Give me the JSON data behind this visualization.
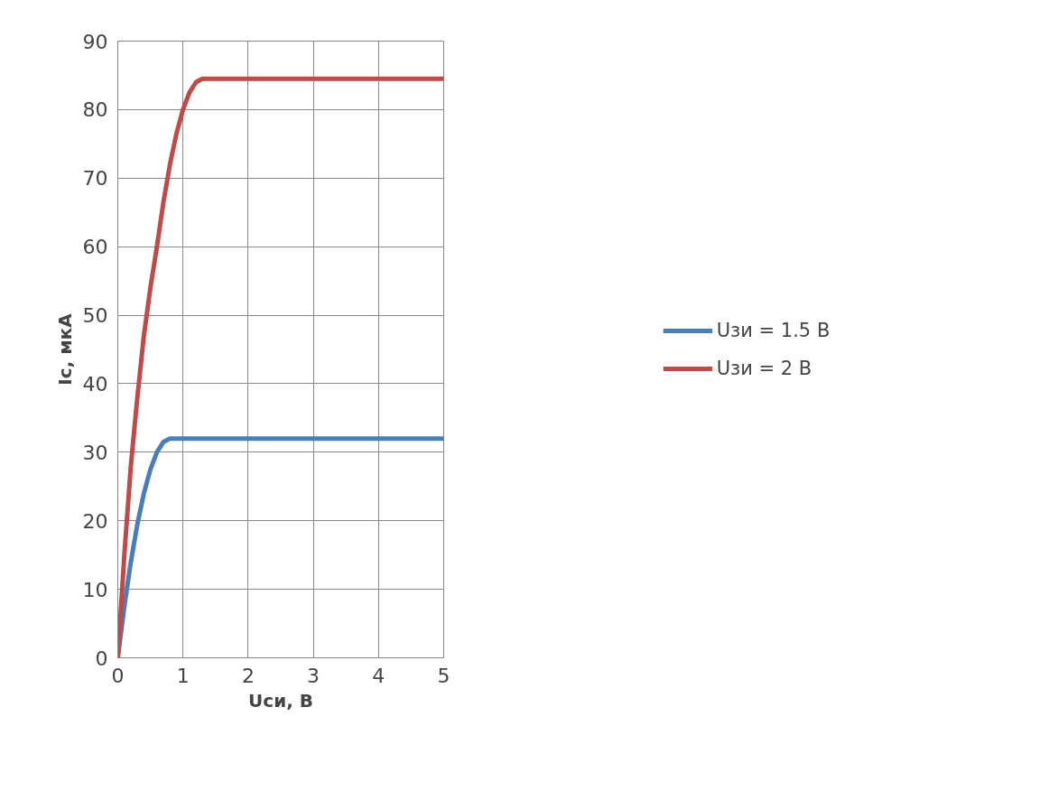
{
  "chart_data": {
    "type": "line",
    "xlabel": "Uси, В",
    "ylabel": "Iс, мкА",
    "xlim": [
      0,
      5
    ],
    "ylim": [
      0,
      90
    ],
    "xticks": [
      0,
      1,
      2,
      3,
      4,
      5
    ],
    "yticks": [
      0,
      10,
      20,
      30,
      40,
      50,
      60,
      70,
      80,
      90
    ],
    "grid": true,
    "legend": "right",
    "marker": "none",
    "line_style": "solid",
    "series": [
      {
        "name": "Uзи = 1.5 В",
        "color": "#4a7ebb",
        "x": [
          0,
          0.1,
          0.2,
          0.3,
          0.4,
          0.5,
          0.6,
          0.7,
          0.8,
          5
        ],
        "values": [
          0,
          7.5,
          14,
          19.5,
          24,
          27.5,
          30,
          31.5,
          32,
          32
        ]
      },
      {
        "name": "Uзи = 2 В",
        "color": "#be4b48",
        "x": [
          0,
          0.1,
          0.2,
          0.3,
          0.4,
          0.5,
          0.6,
          0.7,
          0.8,
          0.9,
          1.0,
          1.1,
          1.2,
          1.3,
          5
        ],
        "values": [
          0,
          15,
          28,
          38,
          47,
          54,
          60,
          66.5,
          72,
          76.5,
          80,
          82.5,
          84,
          84.5,
          84.5
        ]
      }
    ]
  }
}
